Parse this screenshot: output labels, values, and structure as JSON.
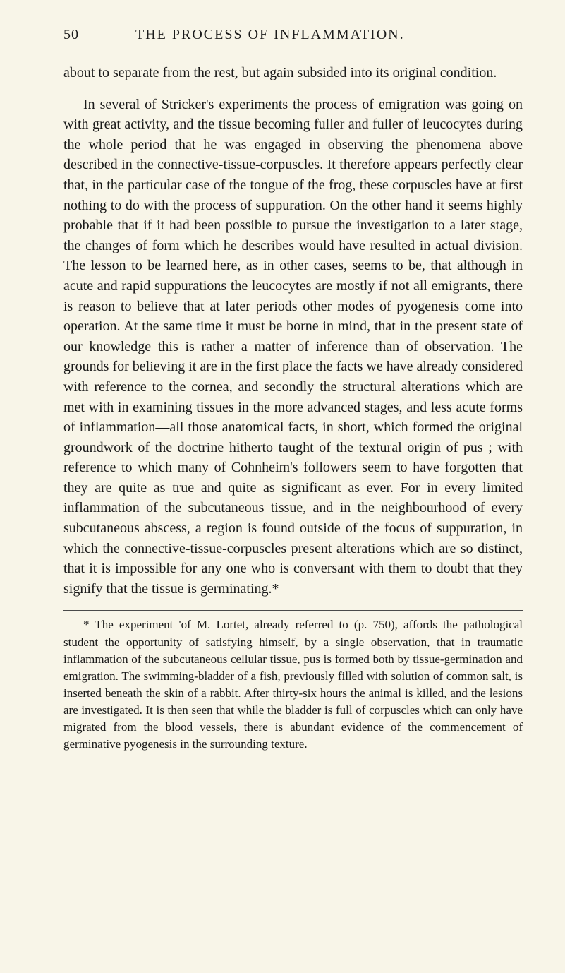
{
  "header": {
    "page_number": "50",
    "chapter_title": "THE PROCESS OF INFLAMMATION."
  },
  "paragraphs": {
    "p1": "about to separate from the rest, but again subsided into its original condition.",
    "p2": "In several of Stricker's experiments the process of emigration was going on with great activity, and the tissue becoming fuller and fuller of leucocytes during the whole period that he was engaged in observing the phenomena above described in the connective-tissue-corpuscles. It therefore appears perfectly clear that, in the particular case of the tongue of the frog, these corpuscles have at first nothing to do with the process of suppuration. On the other hand it seems highly probable that if it had been possible to pursue the investigation to a later stage, the changes of form which he describes would have resulted in actual division. The lesson to be learned here, as in other cases, seems to be, that although in acute and rapid suppurations the leucocytes are mostly if not all emigrants, there is reason to believe that at later periods other modes of pyogenesis come into operation. At the same time it must be borne in mind, that in the present state of our knowledge this is rather a matter of inference than of observation. The grounds for believing it are in the first place the facts we have already considered with reference to the cornea, and secondly the structural alterations which are met with in examining tissues in the more advanced stages, and less acute forms of inflammation—all those anatomical facts, in short, which formed the original groundwork of the doctrine hitherto taught of the textural origin of pus ; with reference to which many of Cohnheim's followers seem to have forgotten that they are quite as true and quite as significant as ever. For in every limited inflammation of the subcutaneous tissue, and in the neighbourhood of every subcutaneous abscess, a region is found outside of the focus of suppuration, in which the connective-tissue-corpuscles present alterations which are so distinct, that it is impossible for any one who is conversant with them to doubt that they signify that the tissue is germinating.*"
  },
  "footnote": {
    "text": "* The experiment 'of M. Lortet, already referred to (p. 750), affords the pathological student the opportunity of satisfying himself, by a single observation, that in traumatic inflammation of the subcutaneous cellular tissue, pus is formed both by tissue-germination and emigration. The swimming-bladder of a fish, previously filled with solution of common salt, is inserted beneath the skin of a rabbit. After thirty-six hours the animal is killed, and the lesions are investigated. It is then seen that while the bladder is full of corpuscles which can only have migrated from the blood vessels, there is abundant evidence of the commencement of germinative pyogenesis in the surrounding texture."
  },
  "colors": {
    "background": "#f8f5e8",
    "text": "#1a1a1a",
    "margin_marks": "#4a4a4a"
  }
}
